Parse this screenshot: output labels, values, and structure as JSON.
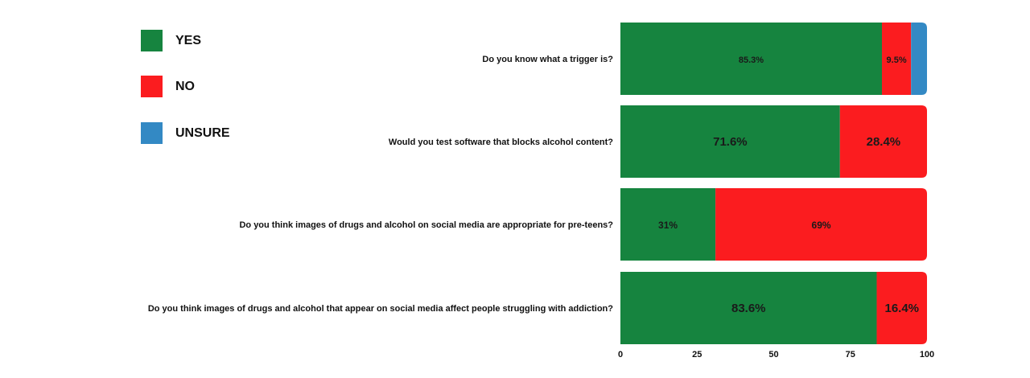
{
  "legend": [
    {
      "label": "YES",
      "color": "#16843f"
    },
    {
      "label": "NO",
      "color": "#fb1c1f"
    },
    {
      "label": "UNSURE",
      "color": "#3389c4"
    }
  ],
  "chart_data": {
    "type": "bar",
    "orientation": "horizontal",
    "stacked": true,
    "title": "",
    "xlabel": "",
    "ylabel": "",
    "xlim": [
      0,
      100
    ],
    "xticks": [
      0,
      25,
      50,
      75,
      100
    ],
    "legend_position": "top-left",
    "grid": false,
    "categories": [
      "Do you know what a trigger is?",
      "Would you test software that blocks alcohol content?",
      "Do you think images of drugs and alcohol on social media are appropriate for pre-teens?",
      "Do you think images of drugs and alcohol that appear on social media affect people struggling with addiction?"
    ],
    "series": [
      {
        "name": "YES",
        "color": "#16843f",
        "values": [
          85.3,
          71.6,
          31,
          83.6
        ],
        "labels": [
          "85.3%",
          "71.6%",
          "31%",
          "83.6%"
        ]
      },
      {
        "name": "NO",
        "color": "#fb1c1f",
        "values": [
          9.5,
          28.4,
          69,
          16.4
        ],
        "labels": [
          "9.5%",
          "28.4%",
          "69%",
          "16.4%"
        ]
      },
      {
        "name": "UNSURE",
        "color": "#3389c4",
        "values": [
          5.2,
          0,
          0,
          0
        ],
        "labels": [
          "",
          "",
          "",
          ""
        ]
      }
    ]
  }
}
